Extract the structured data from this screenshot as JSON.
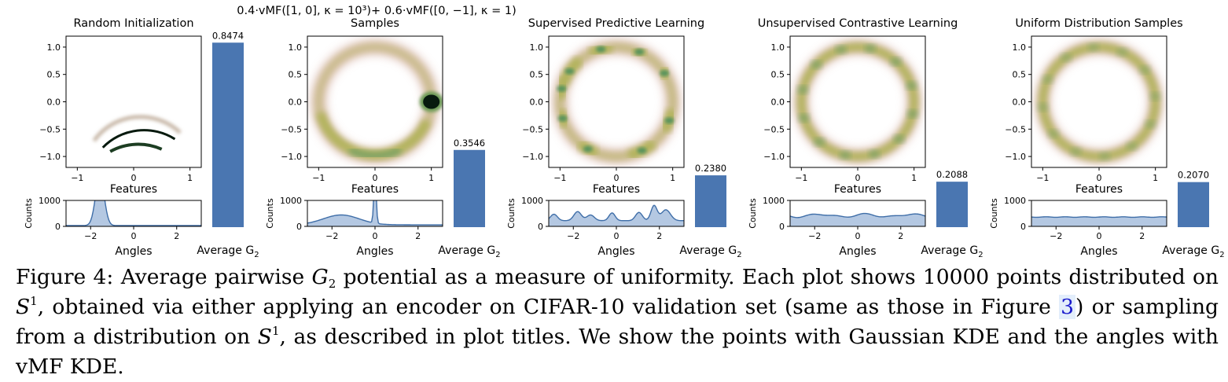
{
  "chart_data": [
    {
      "type": "density-panel",
      "title": "Random Initialization",
      "title_line1": "",
      "points_xlabel": "Features",
      "hist_xlabel": "Angles",
      "hist_ylabel": "Counts",
      "bar_xlabel": "Average G",
      "bar_value": 0.8474,
      "bar_label": "0.8474",
      "points_xlim": [
        -1.2,
        1.2
      ],
      "points_ylim": [
        -1.2,
        1.2
      ],
      "points_xticks": [
        "−1",
        "0",
        "1"
      ],
      "points_yticks": [
        "1.0",
        "0.5",
        "0.0",
        "−0.5",
        "−1.0"
      ],
      "hist_xticks": [
        "−2",
        "0",
        "2"
      ],
      "hist_yticks": [
        "1000",
        "0"
      ],
      "angle_density_profile": "single peak near -1.57"
    },
    {
      "type": "density-panel",
      "title": "Samples",
      "title_line1": "0.4·vMF([1, 0], κ = 10³)+ 0.6·vMF([0, −1], κ = 1)",
      "points_xlabel": "Features",
      "hist_xlabel": "Angles",
      "hist_ylabel": "Counts",
      "bar_xlabel": "Average G",
      "bar_value": 0.3546,
      "bar_label": "0.3546",
      "points_xlim": [
        -1.2,
        1.2
      ],
      "points_ylim": [
        -1.2,
        1.2
      ],
      "points_xticks": [
        "−1",
        "0",
        "1"
      ],
      "points_yticks": [
        "1.0",
        "0.5",
        "0.0",
        "−0.5",
        "−1.0"
      ],
      "hist_xticks": [
        "−2",
        "0",
        "2"
      ],
      "hist_yticks": [
        "1000",
        "0"
      ],
      "angle_density_profile": "sharp peak at 0 plus broad bump near -1.57"
    },
    {
      "type": "density-panel",
      "title": "Supervised Predictive Learning",
      "title_line1": "",
      "points_xlabel": "Features",
      "hist_xlabel": "Angles",
      "hist_ylabel": "Counts",
      "bar_xlabel": "Average G",
      "bar_value": 0.238,
      "bar_label": "0.2380",
      "points_xlim": [
        -1.2,
        1.2
      ],
      "points_ylim": [
        -1.2,
        1.2
      ],
      "points_xticks": [
        "−1",
        "0",
        "1"
      ],
      "points_yticks": [
        "1.0",
        "0.5",
        "0.0",
        "−0.5",
        "−1.0"
      ],
      "hist_xticks": [
        "−2",
        "0",
        "2"
      ],
      "hist_yticks": [
        "1000",
        "0"
      ],
      "angle_density_profile": "multiple uneven clusters"
    },
    {
      "type": "density-panel",
      "title": "Unsupervised Contrastive Learning",
      "title_line1": "",
      "points_xlabel": "Features",
      "hist_xlabel": "Angles",
      "hist_ylabel": "Counts",
      "bar_xlabel": "Average G",
      "bar_value": 0.2088,
      "bar_label": "0.2088",
      "points_xlim": [
        -1.2,
        1.2
      ],
      "points_ylim": [
        -1.2,
        1.2
      ],
      "points_xticks": [
        "−1",
        "0",
        "1"
      ],
      "points_yticks": [
        "1.0",
        "0.5",
        "0.0",
        "−0.5",
        "−1.0"
      ],
      "hist_xticks": [
        "−2",
        "0",
        "2"
      ],
      "hist_yticks": [
        "1000",
        "0"
      ],
      "angle_density_profile": "nearly uniform with slight waves"
    },
    {
      "type": "density-panel",
      "title": "Uniform Distribution Samples",
      "title_line1": "",
      "points_xlabel": "Features",
      "hist_xlabel": "Angles",
      "hist_ylabel": "Counts",
      "bar_xlabel": "Average G",
      "bar_value": 0.207,
      "bar_label": "0.2070",
      "points_xlim": [
        -1.2,
        1.2
      ],
      "points_ylim": [
        -1.2,
        1.2
      ],
      "points_xticks": [
        "−1",
        "0",
        "1"
      ],
      "points_yticks": [
        "1.0",
        "0.5",
        "0.0",
        "−0.5",
        "−1.0"
      ],
      "hist_xticks": [
        "−2",
        "0",
        "2"
      ],
      "hist_yticks": [
        "1000",
        "0"
      ],
      "angle_density_profile": "uniform"
    }
  ],
  "bar_ylim": [
    0,
    1.0
  ],
  "bar_subscript": "2",
  "colors": {
    "bar": "#4a76b1",
    "hist_fill": "#b4c8e2",
    "hist_line": "#3f6ea8",
    "ring_outer": "#d9b5aa",
    "ring_mid": "#b2b35c",
    "ring_peak": "#3f8a5c",
    "dense": "#071a0e",
    "ref_highlight": "#e3eefb"
  },
  "caption": {
    "label": "Figure 4:",
    "part1": "Average pairwise",
    "g": "G",
    "g_sub": "2",
    "part2": "potential as a measure of uniformity. Each plot shows 10000 points distributed on",
    "s": "S",
    "s_sup": "1",
    "part3": ", obtained via either applying an encoder on CIFAR-10 validation set (same as those in Figure",
    "ref": "3",
    "part4": ") or sampling from a distribution on",
    "part5": ", as described in plot titles. We show the points with Gaussian KDE and the angles with vMF KDE."
  }
}
